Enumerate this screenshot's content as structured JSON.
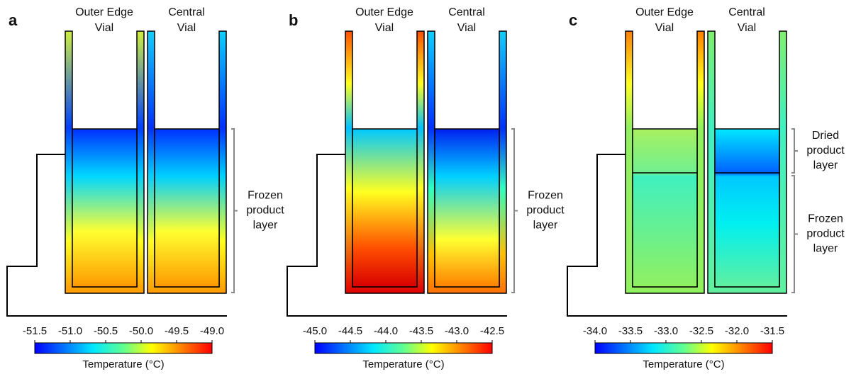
{
  "panels": [
    {
      "letter": "a",
      "outer_vial": [
        "Outer Edge",
        "Vial"
      ],
      "central_vial": [
        "Central",
        "Vial"
      ],
      "layers": [
        [
          "Frozen",
          "product",
          "layer"
        ]
      ],
      "colorbar": {
        "ticks": [
          "-51.5",
          "-51.0",
          "-50.5",
          "-50.0",
          "-49.5",
          "-49.0"
        ],
        "label": "Temperature (°C)"
      }
    },
    {
      "letter": "b",
      "outer_vial": [
        "Outer Edge",
        "Vial"
      ],
      "central_vial": [
        "Central",
        "Vial"
      ],
      "layers": [
        [
          "Frozen",
          "product",
          "layer"
        ]
      ],
      "colorbar": {
        "ticks": [
          "-45.0",
          "-44.5",
          "-44.0",
          "-43.5",
          "-43.0",
          "-42.5"
        ],
        "label": "Temperature (°C)"
      }
    },
    {
      "letter": "c",
      "outer_vial": [
        "Outer Edge",
        "Vial"
      ],
      "central_vial": [
        "Central",
        "Vial"
      ],
      "layers": [
        [
          "Dried",
          "product",
          "layer"
        ],
        [
          "Frozen",
          "product",
          "layer"
        ]
      ],
      "colorbar": {
        "ticks": [
          "-34.0",
          "-33.5",
          "-33.0",
          "-32.5",
          "-32.0",
          "-31.5"
        ],
        "label": "Temperature (°C)"
      }
    }
  ]
}
